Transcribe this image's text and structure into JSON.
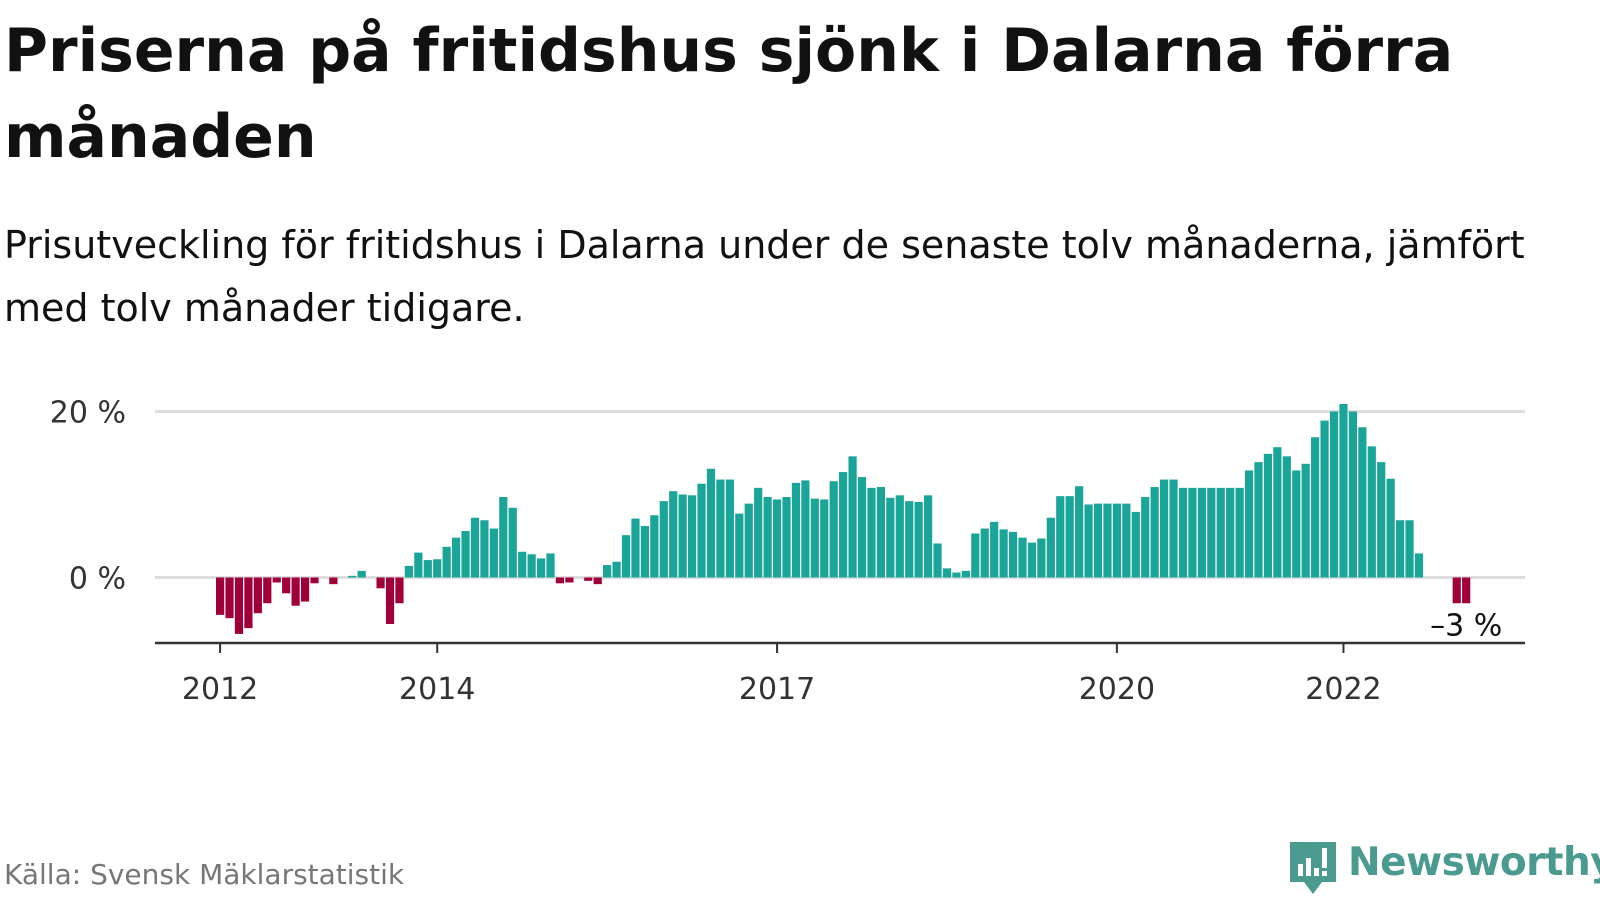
{
  "title": "Priserna på fritidshus sjönk i Dalarna förra månaden",
  "subtitle": "Prisutveckling för fritidshus i Dalarna under de senaste tolv månaderna, jämfört med tolv månader tidigare.",
  "source": "Källa: Svensk Mäklarstatistik",
  "brand": {
    "name": "Newsworthy",
    "color": "#4a9a8f",
    "icon": "newsworthy-logo-icon"
  },
  "colors": {
    "positive": "#1aa598",
    "negative": "#a0003a",
    "grid": "#dddddd",
    "axis": "#333333"
  },
  "chart_data": {
    "type": "bar",
    "unit": "%",
    "ylim": [
      -8,
      20
    ],
    "y_ticks": [
      {
        "value": 0,
        "label": "0 %"
      },
      {
        "value": 20,
        "label": "20 %"
      }
    ],
    "x_ticks": [
      {
        "index": 0,
        "label": "2012"
      },
      {
        "index": 23,
        "label": "2014"
      },
      {
        "index": 59,
        "label": "2017"
      },
      {
        "index": 95,
        "label": "2020"
      },
      {
        "index": 119,
        "label": "2022"
      }
    ],
    "grid": true,
    "legend": "none",
    "annotation": {
      "index": 132,
      "label": "–3 %"
    },
    "values": [
      -4.5,
      -4.9,
      -6.8,
      -6.1,
      -4.3,
      -3.1,
      -0.6,
      -1.9,
      -3.4,
      -2.9,
      -0.7,
      0,
      -0.8,
      0,
      0.2,
      0.8,
      0,
      -1.3,
      -5.6,
      -3.1,
      1.4,
      3.0,
      2.1,
      2.2,
      3.7,
      4.8,
      5.6,
      7.2,
      6.9,
      5.9,
      9.7,
      8.4,
      3.1,
      2.8,
      2.3,
      2.9,
      -0.7,
      -0.6,
      0,
      -0.4,
      -0.8,
      1.5,
      1.9,
      5.1,
      7.1,
      6.2,
      7.5,
      9.2,
      10.4,
      10.0,
      9.9,
      11.3,
      13.1,
      11.8,
      11.8,
      7.7,
      8.9,
      10.8,
      9.7,
      9.4,
      9.7,
      11.4,
      11.7,
      9.5,
      9.4,
      11.6,
      12.7,
      14.6,
      12.1,
      10.8,
      10.9,
      9.6,
      9.9,
      9.2,
      9.1,
      9.9,
      4.1,
      1.1,
      0.6,
      0.8,
      5.3,
      5.9,
      6.7,
      5.8,
      5.5,
      4.8,
      4.2,
      4.7,
      7.2,
      9.8,
      9.8,
      11.0,
      8.8,
      8.9,
      8.9,
      8.9,
      8.9,
      7.9,
      9.7,
      10.9,
      11.8,
      11.8,
      10.8,
      10.8,
      10.8,
      10.8,
      10.8,
      10.8,
      10.8,
      12.9,
      13.9,
      14.9,
      15.7,
      14.6,
      12.9,
      13.7,
      16.9,
      18.9,
      20.0,
      20.9,
      20.0,
      18.1,
      15.8,
      13.9,
      11.9,
      6.9,
      6.9,
      2.9,
      0,
      0,
      0,
      -3.1,
      -3.1
    ]
  }
}
